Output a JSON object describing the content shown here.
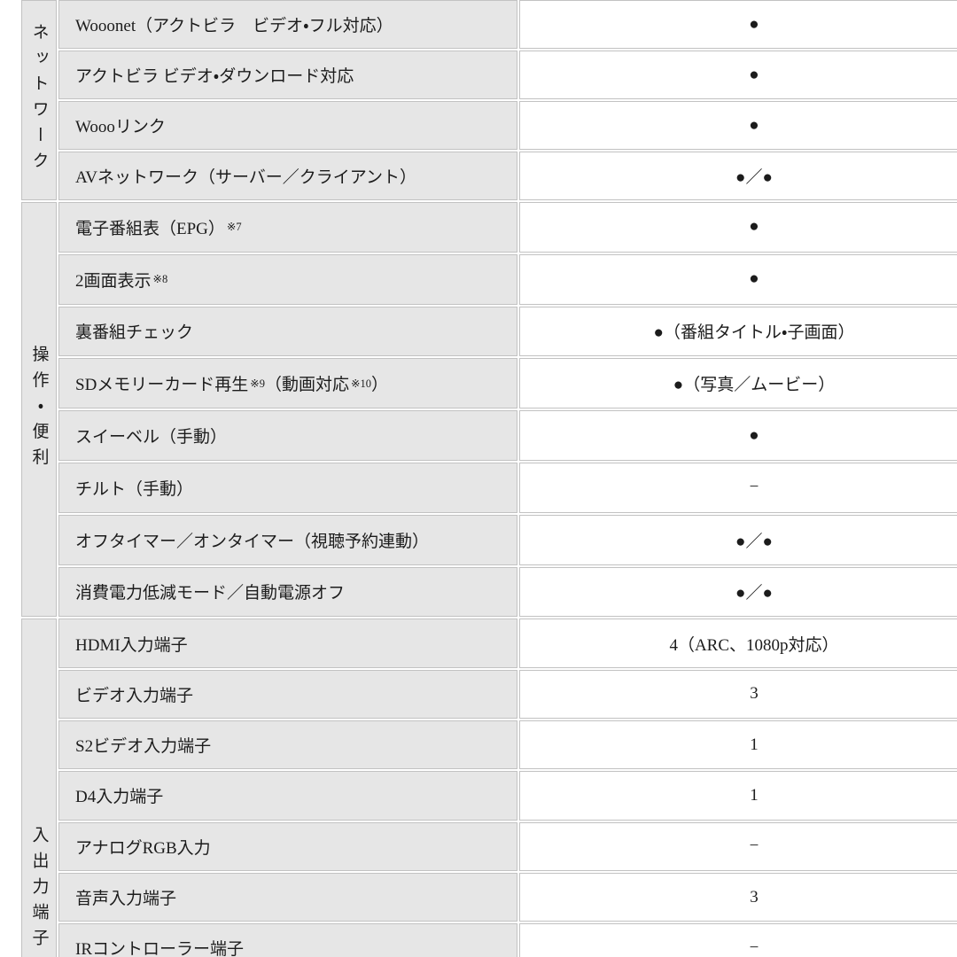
{
  "table": {
    "colors": {
      "cell_bg": "#e6e6e6",
      "value_bg": "#ffffff",
      "border": "#c2c2c2",
      "text": "#1c1c1c",
      "bullet": "#000000"
    },
    "sections": [
      {
        "category": "ネットワーク",
        "rows": [
          {
            "label": [
              {
                "text": "Wooonet（アクトビラ　ビデオ・フル対応）"
              }
            ],
            "value": "●"
          },
          {
            "label": [
              {
                "text": "アクトビラ ビデオ・ダウンロード対応"
              }
            ],
            "value": "●"
          },
          {
            "label": [
              {
                "text": "Woooリンク"
              }
            ],
            "value": "●"
          },
          {
            "label": [
              {
                "text": "AVネットワーク（サーバー／クライアント）"
              }
            ],
            "value": "●／●"
          }
        ]
      },
      {
        "category": "操作・便利",
        "rows": [
          {
            "label": [
              {
                "text": "電子番組表（EPG）"
              },
              {
                "text": "※7",
                "sup": true
              }
            ],
            "value": "●"
          },
          {
            "label": [
              {
                "text": "2画面表示"
              },
              {
                "text": "※8",
                "sup": true
              }
            ],
            "value": "●"
          },
          {
            "label": [
              {
                "text": "裏番組チェック"
              }
            ],
            "value": "●（番組タイトル・子画面）"
          },
          {
            "label": [
              {
                "text": "SDメモリーカード再生"
              },
              {
                "text": "※9",
                "sup": true
              },
              {
                "text": "（動画対応"
              },
              {
                "text": "※10",
                "sup": true
              },
              {
                "text": "）"
              }
            ],
            "value": "●（写真／ムービー）"
          },
          {
            "label": [
              {
                "text": "スイーベル（手動）"
              }
            ],
            "value": "●"
          },
          {
            "label": [
              {
                "text": "チルト（手動）"
              }
            ],
            "value": "−"
          },
          {
            "label": [
              {
                "text": "オフタイマー／オンタイマー（視聴予約連動）"
              }
            ],
            "value": "●／●"
          },
          {
            "label": [
              {
                "text": "消費電力低減モード／自動電源オフ"
              }
            ],
            "value": "●／●"
          }
        ]
      },
      {
        "category": "入出力端子",
        "rows": [
          {
            "label": [
              {
                "text": "HDMI入力端子"
              }
            ],
            "value": "4（ARC、1080p対応）"
          },
          {
            "label": [
              {
                "text": "ビデオ入力端子"
              }
            ],
            "value": "3"
          },
          {
            "label": [
              {
                "text": "S2ビデオ入力端子"
              }
            ],
            "value": "1"
          },
          {
            "label": [
              {
                "text": "D4入力端子"
              }
            ],
            "value": "1"
          },
          {
            "label": [
              {
                "text": "アナログRGB入力"
              }
            ],
            "value": "−"
          },
          {
            "label": [
              {
                "text": "音声入力端子"
              }
            ],
            "value": "3"
          },
          {
            "label": [
              {
                "text": "IRコントローラー端子"
              }
            ],
            "value": "−"
          }
        ]
      }
    ]
  }
}
